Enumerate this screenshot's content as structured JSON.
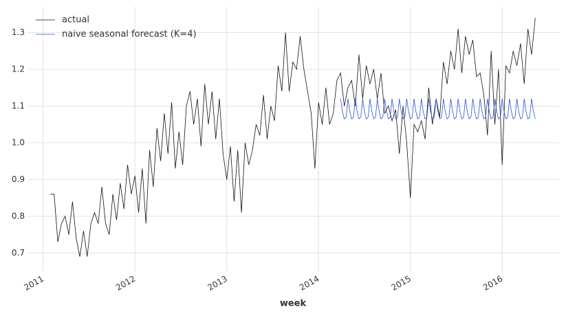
{
  "chart_data": {
    "type": "line",
    "xlabel": "week",
    "grid": true,
    "legend": "upper left",
    "xlim": [
      2010.83,
      2016.62
    ],
    "xticks": [
      2011,
      2012,
      2013,
      2014,
      2015,
      2016
    ],
    "ylim": [
      0.65,
      1.37
    ],
    "yticks": [
      0.7,
      0.8,
      0.9,
      {
        "value": 1,
        "label": "1.0"
      },
      1.1,
      1.2,
      1.3
    ],
    "series": [
      {
        "name": "actual",
        "color": "#111111",
        "x": [
          2011.08,
          2011.12,
          2011.16,
          2011.2,
          2011.24,
          2011.28,
          2011.32,
          2011.36,
          2011.4,
          2011.44,
          2011.48,
          2011.52,
          2011.56,
          2011.6,
          2011.64,
          2011.68,
          2011.72,
          2011.76,
          2011.8,
          2011.84,
          2011.88,
          2011.92,
          2011.96,
          2012.0,
          2012.04,
          2012.08,
          2012.12,
          2012.16,
          2012.2,
          2012.24,
          2012.28,
          2012.32,
          2012.36,
          2012.4,
          2012.44,
          2012.48,
          2012.52,
          2012.56,
          2012.6,
          2012.64,
          2012.68,
          2012.72,
          2012.76,
          2012.8,
          2012.84,
          2012.88,
          2012.92,
          2012.96,
          2013.0,
          2013.04,
          2013.08,
          2013.12,
          2013.16,
          2013.2,
          2013.24,
          2013.28,
          2013.32,
          2013.36,
          2013.4,
          2013.44,
          2013.48,
          2013.52,
          2013.56,
          2013.6,
          2013.64,
          2013.68,
          2013.72,
          2013.76,
          2013.8,
          2013.84,
          2013.88,
          2013.92,
          2013.96,
          2014.0,
          2014.04,
          2014.08,
          2014.12,
          2014.16,
          2014.2,
          2014.24,
          2014.28,
          2014.32,
          2014.36,
          2014.4,
          2014.44,
          2014.48,
          2014.52,
          2014.56,
          2014.6,
          2014.64,
          2014.68,
          2014.72,
          2014.76,
          2014.8,
          2014.84,
          2014.88,
          2014.92,
          2014.96,
          2015.0,
          2015.04,
          2015.08,
          2015.12,
          2015.16,
          2015.2,
          2015.24,
          2015.28,
          2015.32,
          2015.36,
          2015.4,
          2015.44,
          2015.48,
          2015.52,
          2015.56,
          2015.6,
          2015.64,
          2015.68,
          2015.72,
          2015.76,
          2015.8,
          2015.84,
          2015.88,
          2015.92,
          2015.96,
          2016.0,
          2016.04,
          2016.08,
          2016.12,
          2016.16,
          2016.2,
          2016.24,
          2016.28,
          2016.32,
          2016.36
        ],
        "values": [
          0.86,
          0.86,
          0.73,
          0.78,
          0.8,
          0.75,
          0.84,
          0.74,
          0.69,
          0.76,
          0.69,
          0.78,
          0.81,
          0.78,
          0.88,
          0.78,
          0.75,
          0.86,
          0.79,
          0.89,
          0.82,
          0.94,
          0.86,
          0.91,
          0.81,
          0.93,
          0.78,
          0.98,
          0.88,
          1.04,
          0.95,
          1.08,
          0.97,
          1.11,
          0.93,
          1.03,
          0.94,
          1.1,
          1.14,
          1.05,
          1.12,
          0.99,
          1.16,
          1.05,
          1.14,
          1.01,
          1.12,
          0.97,
          0.9,
          0.99,
          0.84,
          0.98,
          0.81,
          1.0,
          0.94,
          0.98,
          1.05,
          1.02,
          1.13,
          1.01,
          1.1,
          1.06,
          1.21,
          1.14,
          1.3,
          1.14,
          1.22,
          1.2,
          1.29,
          1.2,
          1.14,
          1.08,
          0.93,
          1.11,
          1.05,
          1.15,
          1.05,
          1.08,
          1.17,
          1.19,
          1.1,
          1.15,
          1.17,
          1.1,
          1.24,
          1.12,
          1.21,
          1.16,
          1.2,
          1.12,
          1.19,
          1.08,
          1.1,
          1.06,
          1.09,
          0.97,
          1.1,
          1.0,
          0.85,
          1.05,
          1.03,
          1.06,
          1.01,
          1.15,
          1.05,
          1.12,
          1.07,
          1.22,
          1.16,
          1.25,
          1.2,
          1.31,
          1.19,
          1.29,
          1.24,
          1.28,
          1.18,
          1.19,
          1.13,
          1.02,
          1.25,
          1.05,
          1.2,
          0.94,
          1.21,
          1.19,
          1.25,
          1.21,
          1.27,
          1.16,
          1.31,
          1.24,
          1.34
        ]
      },
      {
        "name": "naive seasonal forecast (K=4)",
        "color": "#2a52d6",
        "x": [
          2014.24,
          2014.26,
          2014.28,
          2014.3,
          2014.32,
          2014.34,
          2014.36,
          2014.38,
          2014.4,
          2014.42,
          2014.44,
          2014.46,
          2014.48,
          2014.5,
          2014.52,
          2014.54,
          2014.56,
          2014.58,
          2014.6,
          2014.62,
          2014.64,
          2014.66,
          2014.68,
          2014.7,
          2014.72,
          2014.74,
          2014.76,
          2014.78,
          2014.8,
          2014.82,
          2014.84,
          2014.86,
          2014.88,
          2014.9,
          2014.92,
          2014.94,
          2014.96,
          2014.98,
          2015.0,
          2015.02,
          2015.04,
          2015.06,
          2015.08,
          2015.1,
          2015.12,
          2015.14,
          2015.16,
          2015.18,
          2015.2,
          2015.22,
          2015.24,
          2015.26,
          2015.28,
          2015.3,
          2015.32,
          2015.34,
          2015.36,
          2015.38,
          2015.4,
          2015.42,
          2015.44,
          2015.46,
          2015.48,
          2015.5,
          2015.52,
          2015.54,
          2015.56,
          2015.58,
          2015.6,
          2015.62,
          2015.64,
          2015.66,
          2015.68,
          2015.7,
          2015.72,
          2015.74,
          2015.76,
          2015.78,
          2015.8,
          2015.82,
          2015.84,
          2015.86,
          2015.88,
          2015.9,
          2015.92,
          2015.94,
          2015.96,
          2015.98,
          2016.0,
          2016.02,
          2016.04,
          2016.06,
          2016.08,
          2016.1,
          2016.12,
          2016.14,
          2016.16,
          2016.18,
          2016.2,
          2016.22,
          2016.24,
          2016.26,
          2016.28,
          2016.3,
          2016.32,
          2016.34,
          2016.36
        ],
        "values": [
          1.12,
          1.085,
          1.065,
          1.07,
          1.12,
          1.085,
          1.065,
          1.07,
          1.12,
          1.085,
          1.065,
          1.07,
          1.12,
          1.085,
          1.065,
          1.07,
          1.12,
          1.085,
          1.065,
          1.07,
          1.12,
          1.085,
          1.065,
          1.07,
          1.12,
          1.085,
          1.065,
          1.07,
          1.12,
          1.085,
          1.065,
          1.07,
          1.12,
          1.085,
          1.065,
          1.07,
          1.12,
          1.085,
          1.065,
          1.07,
          1.12,
          1.085,
          1.065,
          1.07,
          1.12,
          1.085,
          1.065,
          1.07,
          1.12,
          1.085,
          1.065,
          1.07,
          1.12,
          1.085,
          1.065,
          1.07,
          1.12,
          1.085,
          1.065,
          1.07,
          1.12,
          1.085,
          1.065,
          1.07,
          1.12,
          1.085,
          1.065,
          1.07,
          1.12,
          1.085,
          1.065,
          1.07,
          1.12,
          1.085,
          1.065,
          1.07,
          1.12,
          1.085,
          1.065,
          1.07,
          1.12,
          1.085,
          1.065,
          1.07,
          1.12,
          1.085,
          1.065,
          1.07,
          1.12,
          1.085,
          1.065,
          1.07,
          1.12,
          1.085,
          1.065,
          1.07,
          1.12,
          1.085,
          1.065,
          1.07,
          1.12,
          1.085,
          1.065,
          1.07,
          1.12,
          1.085,
          1.065
        ]
      }
    ]
  }
}
